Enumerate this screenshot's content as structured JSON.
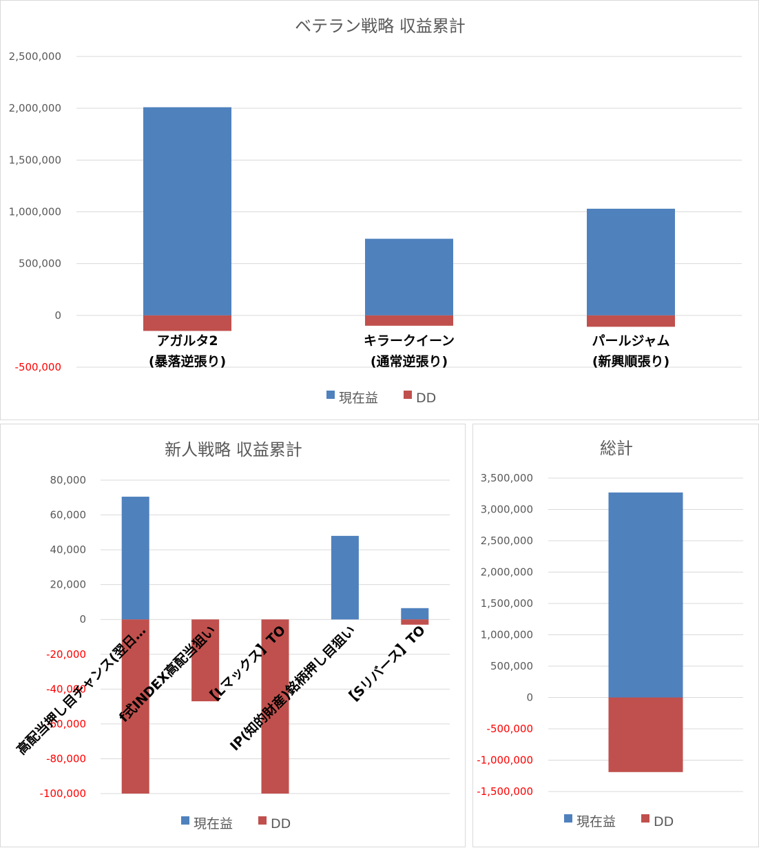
{
  "colors": {
    "profit": "#4f81bd",
    "dd": "#c0504d",
    "grid": "#d9d9d9",
    "negative_tick": "#ff0000",
    "tick": "#595959"
  },
  "legend": {
    "profit": "現在益",
    "dd": "DD"
  },
  "chart_data": [
    {
      "id": "veteran",
      "type": "bar",
      "stacked": true,
      "title": "ベテラン戦略 収益累計",
      "categories": [
        [
          "アガルタ2",
          "(暴落逆張り)"
        ],
        [
          "キラークイーン",
          "(通常逆張り)"
        ],
        [
          "パールジャム",
          "(新興順張り)"
        ]
      ],
      "series": [
        {
          "name": "現在益",
          "values": [
            2010000,
            740000,
            1030000
          ]
        },
        {
          "name": "DD",
          "values": [
            -150000,
            -100000,
            -110000
          ]
        }
      ],
      "yticks": [
        "2,500,000",
        "2,000,000",
        "1,500,000",
        "1,000,000",
        "500,000",
        "0",
        "-500,000"
      ],
      "ylim": [
        -500000,
        2500000
      ],
      "grid": true,
      "legend_position": "bottom"
    },
    {
      "id": "newbie",
      "type": "bar",
      "stacked": true,
      "title": "新人戦略 収益累計",
      "categories": [
        [
          "高配当押し目チャンス(翌日…"
        ],
        [
          "f式INDEX高配当狙い"
        ],
        [
          "【Lマックス】TO"
        ],
        [
          "IP(知的財産)銘柄押し目狙い"
        ],
        [
          "【Sリバース】TO"
        ]
      ],
      "series": [
        {
          "name": "現在益",
          "values": [
            70500,
            0,
            0,
            48000,
            6500
          ]
        },
        {
          "name": "DD",
          "values": [
            -100000,
            -47000,
            -100000,
            0,
            -3000
          ]
        }
      ],
      "yticks": [
        "80,000",
        "60,000",
        "40,000",
        "20,000",
        "0",
        "-20,000",
        "-40,000",
        "-60,000",
        "-80,000",
        "-100,000"
      ],
      "ylim": [
        -100000,
        80000
      ],
      "grid": true,
      "legend_position": "bottom"
    },
    {
      "id": "total",
      "type": "bar",
      "stacked": true,
      "title": "総計",
      "categories": [
        [
          ""
        ]
      ],
      "series": [
        {
          "name": "現在益",
          "values": [
            3270000
          ]
        },
        {
          "name": "DD",
          "values": [
            -1190000
          ]
        }
      ],
      "yticks": [
        "3,500,000",
        "3,000,000",
        "2,500,000",
        "2,000,000",
        "1,500,000",
        "1,000,000",
        "500,000",
        "0",
        "-500,000",
        "-1,000,000",
        "-1,500,000"
      ],
      "ylim": [
        -1500000,
        3500000
      ],
      "grid": true,
      "legend_position": "bottom"
    }
  ]
}
